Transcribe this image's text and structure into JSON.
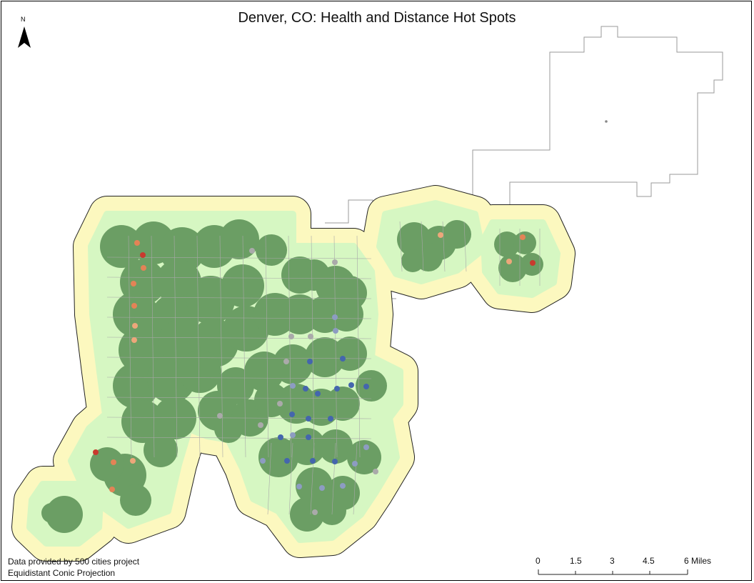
{
  "map": {
    "title": "Denver, CO: Health and Distance Hot Spots",
    "north_arrow_label": "N",
    "credit_lines": [
      "Data provided by 500 cities project",
      "Equidistant Conic Projection"
    ],
    "scale_bar": {
      "ticks": [
        "0",
        "1.5",
        "3",
        "4.5"
      ],
      "end_label": "6 Miles"
    },
    "colors": {
      "outer_buffer": "#fcf8bf",
      "inner_buffer": "#d6f7c2",
      "park_green": "#6b9e64",
      "boundary": "#9a9a9a",
      "hot_spot_high": "#c93a2e",
      "hot_spot_mid": "#e38356",
      "hot_spot_low": "#eda77a",
      "neutral": "#aaaaaa",
      "cold_spot_low": "#8d9cc2",
      "cold_spot_high": "#4466ad"
    }
  }
}
